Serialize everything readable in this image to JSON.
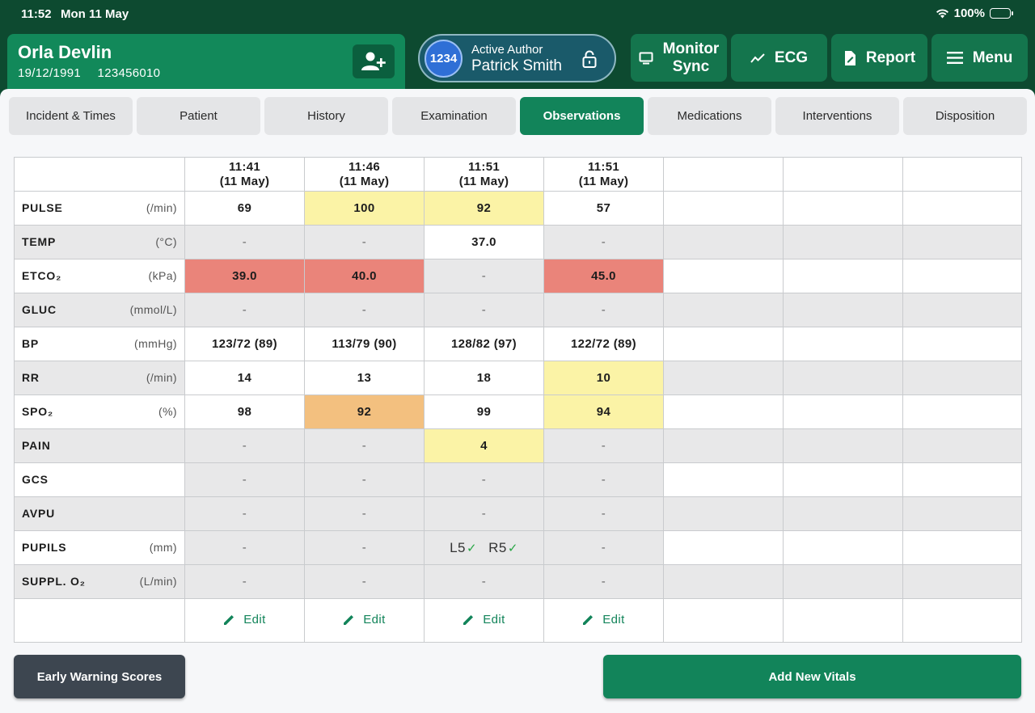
{
  "status_bar": {
    "time": "11:52",
    "date": "Mon 11 May",
    "battery": "100%"
  },
  "patient": {
    "name": "Orla Devlin",
    "dob": "19/12/1991",
    "id": "123456010"
  },
  "author": {
    "badge": "1234",
    "role": "Active Author",
    "name": "Patrick Smith"
  },
  "header_buttons": {
    "monitor_line1": "Monitor",
    "monitor_line2": "Sync",
    "ecg": "ECG",
    "report": "Report",
    "menu": "Menu"
  },
  "tabs": [
    "Incident & Times",
    "Patient",
    "History",
    "Examination",
    "Observations",
    "Medications",
    "Interventions",
    "Disposition"
  ],
  "active_tab": "Observations",
  "columns": [
    {
      "time": "11:41",
      "date": "(11 May)"
    },
    {
      "time": "11:46",
      "date": "(11 May)"
    },
    {
      "time": "11:51",
      "date": "(11 May)"
    },
    {
      "time": "11:51",
      "date": "(11 May)"
    }
  ],
  "rows": [
    {
      "name": "PULSE",
      "unit": "(/min)",
      "values": [
        "69",
        "100",
        "92",
        "57"
      ]
    },
    {
      "name": "TEMP",
      "unit": "(°C)",
      "values": [
        "-",
        "-",
        "37.0",
        "-"
      ]
    },
    {
      "name": "ETCO₂",
      "unit": "(kPa)",
      "values": [
        "39.0",
        "40.0",
        "-",
        "45.0"
      ]
    },
    {
      "name": "GLUC",
      "unit": "(mmol/L)",
      "values": [
        "-",
        "-",
        "-",
        "-"
      ]
    },
    {
      "name": "BP",
      "unit": "(mmHg)",
      "values": [
        "123/72 (89)",
        "113/79 (90)",
        "128/82 (97)",
        "122/72 (89)"
      ]
    },
    {
      "name": "RR",
      "unit": "(/min)",
      "values": [
        "14",
        "13",
        "18",
        "10"
      ]
    },
    {
      "name": "SPO₂",
      "unit": "(%)",
      "values": [
        "98",
        "92",
        "99",
        "94"
      ]
    },
    {
      "name": "PAIN",
      "unit": "",
      "values": [
        "-",
        "-",
        "4",
        "-"
      ]
    },
    {
      "name": "GCS",
      "unit": "",
      "values": [
        "-",
        "-",
        "-",
        "-"
      ]
    },
    {
      "name": "AVPU",
      "unit": "",
      "values": [
        "-",
        "-",
        "-",
        "-"
      ]
    },
    {
      "name": "PUPILS",
      "unit": "(mm)",
      "values": [
        "-",
        "-",
        "",
        "-"
      ],
      "pupils_left": "L5",
      "pupils_right": "R5"
    },
    {
      "name": "SUPPL. O₂",
      "unit": "(L/min)",
      "values": [
        "-",
        "-",
        "-",
        "-"
      ]
    }
  ],
  "highlight_colors": {
    "yellow": "#fbf3a6",
    "red": "#ea847a",
    "orange": "#f3c07f"
  },
  "edit_label": "Edit",
  "footer": {
    "ews_label": "Early Warning Scores",
    "add_label": "Add New Vitals"
  }
}
